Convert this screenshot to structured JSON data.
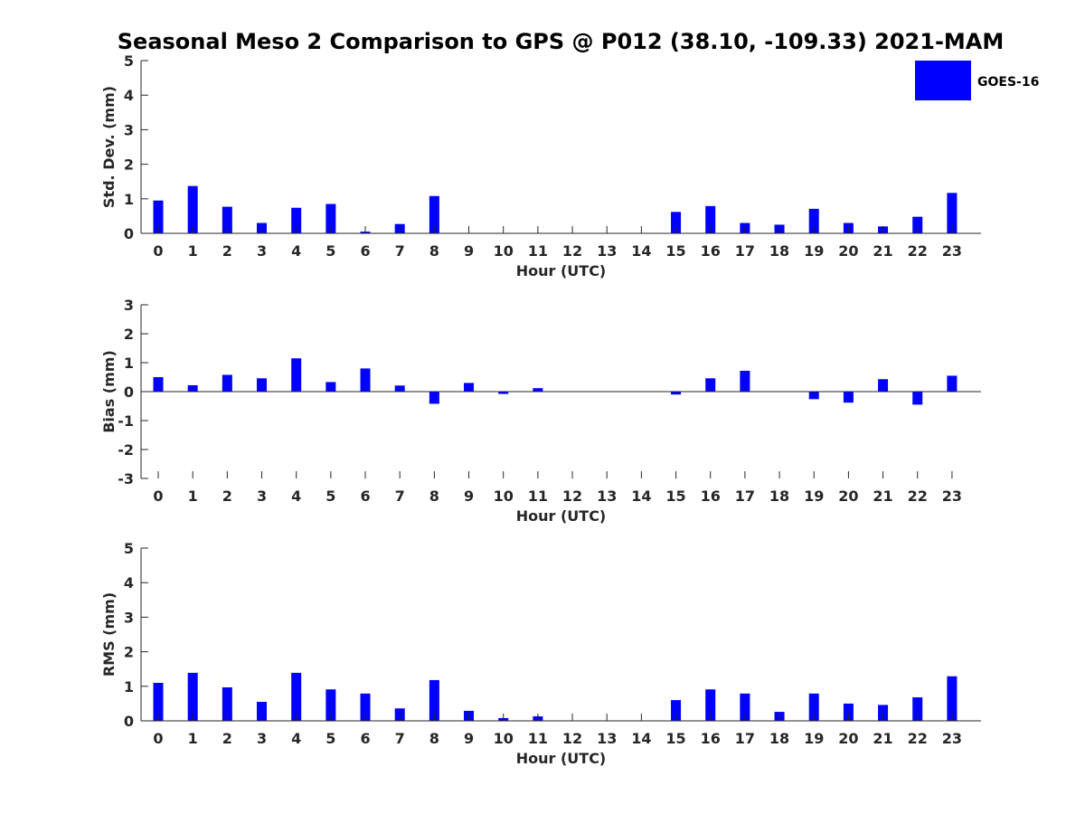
{
  "title": "Seasonal Meso 2 Comparison to GPS @ P012 (38.10, -109.33) 2021-MAM",
  "legend": {
    "label": "GOES-16",
    "color": "#0000ff"
  },
  "chart_data": [
    {
      "type": "bar",
      "name": "std-dev",
      "ylabel": "Std. Dev. (mm)",
      "xlabel": "Hour (UTC)",
      "ylim": [
        0,
        5
      ],
      "yticks": [
        0,
        1,
        2,
        3,
        4,
        5
      ],
      "categories": [
        "0",
        "1",
        "2",
        "3",
        "4",
        "5",
        "6",
        "7",
        "8",
        "9",
        "10",
        "11",
        "12",
        "13",
        "14",
        "15",
        "16",
        "17",
        "18",
        "19",
        "20",
        "21",
        "22",
        "23"
      ],
      "series": [
        {
          "name": "GOES-16",
          "values": [
            0.95,
            1.37,
            0.77,
            0.3,
            0.74,
            0.85,
            0.05,
            0.27,
            1.08,
            0,
            0,
            0,
            0,
            0,
            0,
            0.62,
            0.79,
            0.3,
            0.25,
            0.71,
            0.3,
            0.2,
            0.48,
            1.17
          ]
        }
      ]
    },
    {
      "type": "bar",
      "name": "bias",
      "ylabel": "Bias (mm)",
      "xlabel": "Hour (UTC)",
      "ylim": [
        -3,
        3
      ],
      "yticks": [
        -3,
        -2,
        -1,
        0,
        1,
        2,
        3
      ],
      "categories": [
        "0",
        "1",
        "2",
        "3",
        "4",
        "5",
        "6",
        "7",
        "8",
        "9",
        "10",
        "11",
        "12",
        "13",
        "14",
        "15",
        "16",
        "17",
        "18",
        "19",
        "20",
        "21",
        "22",
        "23"
      ],
      "series": [
        {
          "name": "GOES-16",
          "values": [
            0.5,
            0.22,
            0.58,
            0.46,
            1.15,
            0.33,
            0.8,
            0.21,
            -0.42,
            0.3,
            -0.08,
            0.12,
            0,
            0,
            0,
            -0.1,
            0.46,
            0.72,
            0,
            -0.26,
            -0.38,
            0.43,
            -0.45,
            0.55
          ]
        }
      ]
    },
    {
      "type": "bar",
      "name": "rms",
      "ylabel": "RMS (mm)",
      "xlabel": "Hour (UTC)",
      "ylim": [
        0,
        5
      ],
      "yticks": [
        0,
        1,
        2,
        3,
        4,
        5
      ],
      "categories": [
        "0",
        "1",
        "2",
        "3",
        "4",
        "5",
        "6",
        "7",
        "8",
        "9",
        "10",
        "11",
        "12",
        "13",
        "14",
        "15",
        "16",
        "17",
        "18",
        "19",
        "20",
        "21",
        "22",
        "23"
      ],
      "series": [
        {
          "name": "GOES-16",
          "values": [
            1.1,
            1.39,
            0.97,
            0.55,
            1.39,
            0.91,
            0.79,
            0.36,
            1.18,
            0.29,
            0.08,
            0.13,
            0,
            0,
            0,
            0.6,
            0.91,
            0.79,
            0.26,
            0.79,
            0.5,
            0.46,
            0.68,
            1.29
          ]
        }
      ]
    }
  ]
}
